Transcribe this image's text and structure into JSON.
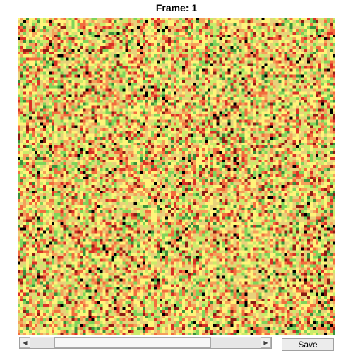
{
  "header": {
    "title": "Frame: 1"
  },
  "heatmap": {
    "colormap": [
      "#000000",
      "#8c1c13",
      "#d93025",
      "#f26d3d",
      "#f5a05a",
      "#e8d27a",
      "#fff47a",
      "#c9ec6a",
      "#7fd45a",
      "#3a8f3a"
    ],
    "description_note": ""
  },
  "scrollbar": {
    "position_fraction": 0.33,
    "thumb_fraction": 0.68,
    "left_arrow": "◀",
    "right_arrow": "▶"
  },
  "toolbar": {
    "save_label": "Save"
  }
}
